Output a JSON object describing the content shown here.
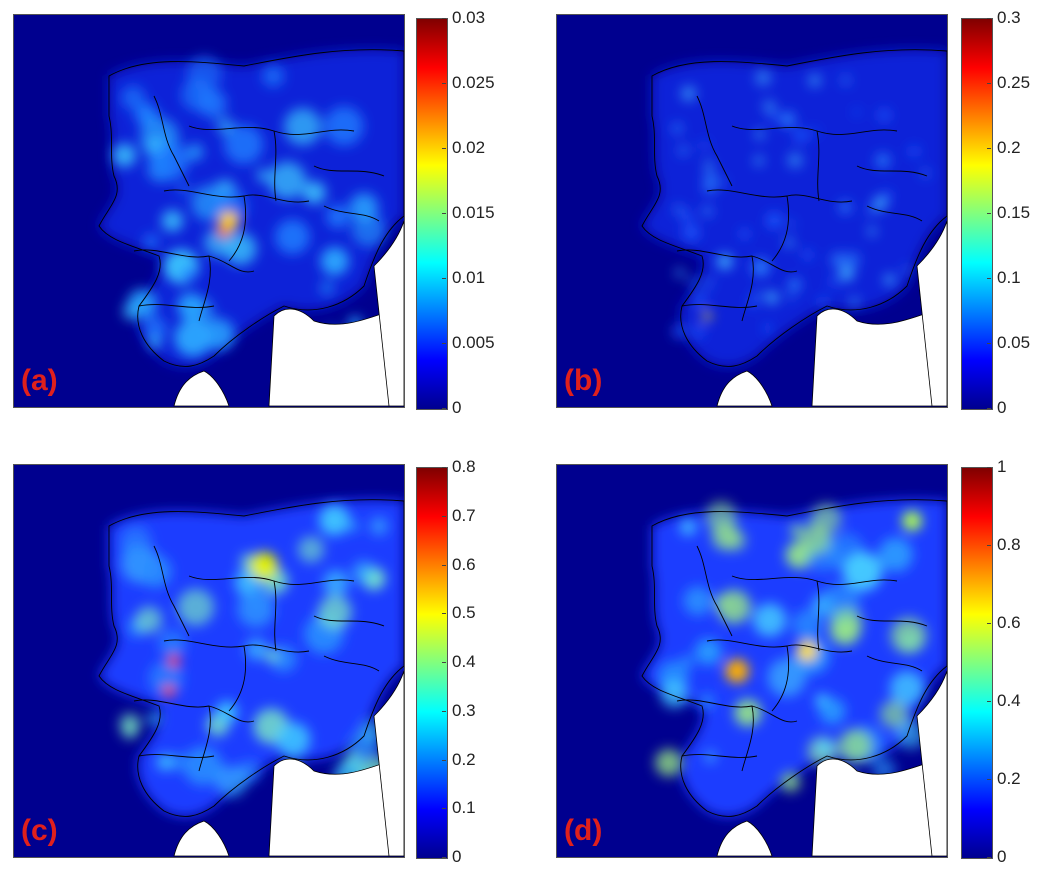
{
  "figure": {
    "panels": [
      {
        "label": "(a)",
        "colorbar": {
          "min": 0,
          "max": 0.03,
          "ticks": [
            "0",
            "0.005",
            "0.01",
            "0.015",
            "0.02",
            "0.025",
            "0.03"
          ]
        }
      },
      {
        "label": "(b)",
        "colorbar": {
          "min": 0,
          "max": 0.3,
          "ticks": [
            "0",
            "0.05",
            "0.1",
            "0.15",
            "0.2",
            "0.25",
            "0.3"
          ]
        }
      },
      {
        "label": "(c)",
        "colorbar": {
          "min": 0,
          "max": 0.8,
          "ticks": [
            "0",
            "0.1",
            "0.2",
            "0.3",
            "0.4",
            "0.5",
            "0.6",
            "0.7",
            "0.8"
          ]
        }
      },
      {
        "label": "(d)",
        "colorbar": {
          "min": 0,
          "max": 1,
          "ticks": [
            "0",
            "0.2",
            "0.4",
            "0.6",
            "0.8",
            "1"
          ]
        }
      }
    ],
    "colormap": "jet",
    "colors": {
      "background_low": "#00008f",
      "no_data": "#ffffff",
      "borders": "#000000",
      "label": "#e0201c"
    }
  }
}
